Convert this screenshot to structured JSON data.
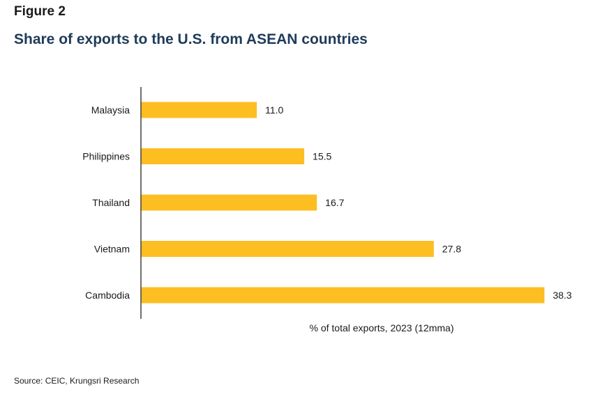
{
  "figure_label": "Figure 2",
  "title": "Share of exports to the U.S. from ASEAN countries",
  "source": "Source: CEIC, Krungsri Research",
  "chart_data": {
    "type": "bar",
    "orientation": "horizontal",
    "categories": [
      "Malaysia",
      "Philippines",
      "Thailand",
      "Vietnam",
      "Cambodia"
    ],
    "values": [
      11.0,
      15.5,
      16.7,
      27.8,
      38.3
    ],
    "value_labels": [
      "11.0",
      "15.5",
      "16.7",
      "27.8",
      "38.3"
    ],
    "xlabel": "% of total exports, 2023 (12mma)",
    "ylabel": "",
    "xlim": [
      0,
      40
    ],
    "grid": false,
    "legend": "none",
    "bar_color": "#FDBE22"
  }
}
